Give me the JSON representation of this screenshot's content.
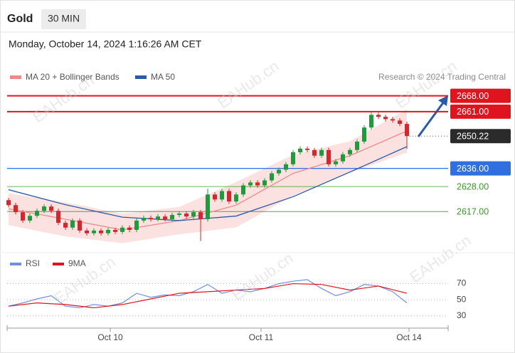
{
  "header": {
    "symbol": "Gold",
    "interval": "30 MIN",
    "datetime": "Monday, October 14, 2024 1:16:26 AM CET"
  },
  "watermark": "EAHub.cn",
  "chart_data": [
    {
      "type": "candlestick",
      "source": "Research © 2024 Trading Central",
      "up_color": "#1f9a3c",
      "down_color": "#d7262b",
      "x": [
        0,
        1,
        2,
        3,
        4,
        5,
        6,
        7,
        8,
        9,
        10,
        11,
        12,
        13,
        14,
        15,
        16,
        17,
        18,
        19,
        20,
        21,
        22,
        23,
        24,
        25,
        26,
        27,
        28,
        29,
        30,
        31,
        32,
        33,
        34,
        35,
        36,
        37,
        38,
        39,
        40,
        41,
        42,
        43,
        44,
        45,
        46,
        47,
        48,
        49,
        50,
        51,
        52,
        53,
        54,
        55,
        56
      ],
      "open": [
        2622.0,
        2619.8,
        2616.7,
        2613.0,
        2615.1,
        2617.3,
        2619.2,
        2617.3,
        2612.0,
        2609.9,
        2613.0,
        2608.6,
        2607.4,
        2608.6,
        2607.4,
        2608.9,
        2608.0,
        2609.9,
        2608.9,
        2613.0,
        2614.2,
        2613.6,
        2614.8,
        2613.6,
        2615.5,
        2616.1,
        2614.8,
        2616.7,
        2613.6,
        2624.5,
        2622.3,
        2626.0,
        2621.4,
        2624.5,
        2628.5,
        2629.8,
        2628.5,
        2630.7,
        2633.8,
        2635.4,
        2637.8,
        2643.1,
        2644.7,
        2644.1,
        2641.6,
        2644.1,
        2637.8,
        2639.1,
        2642.2,
        2644.1,
        2647.8,
        2654.0,
        2659.6,
        2658.7,
        2657.7,
        2657.1,
        2655.6
      ],
      "high": [
        2623.0,
        2620.8,
        2617.7,
        2616.1,
        2618.3,
        2620.2,
        2620.2,
        2618.3,
        2613.0,
        2614.0,
        2614.0,
        2609.6,
        2609.6,
        2609.6,
        2609.9,
        2609.9,
        2610.9,
        2610.9,
        2614.0,
        2615.2,
        2615.2,
        2615.8,
        2615.8,
        2616.5,
        2617.1,
        2617.1,
        2617.7,
        2617.7,
        2627.0,
        2625.5,
        2627.0,
        2627.0,
        2625.5,
        2629.5,
        2630.8,
        2630.8,
        2631.7,
        2634.8,
        2636.4,
        2638.8,
        2644.1,
        2645.7,
        2645.7,
        2645.1,
        2645.1,
        2645.1,
        2640.1,
        2643.2,
        2645.1,
        2648.8,
        2655.0,
        2660.6,
        2660.6,
        2659.7,
        2658.7,
        2658.1,
        2656.6
      ],
      "low": [
        2618.8,
        2615.7,
        2612.0,
        2612.0,
        2614.1,
        2616.3,
        2616.3,
        2611.0,
        2608.9,
        2608.9,
        2607.6,
        2606.4,
        2606.4,
        2606.4,
        2606.4,
        2607.0,
        2607.0,
        2607.9,
        2607.9,
        2612.0,
        2612.6,
        2612.6,
        2612.6,
        2612.6,
        2614.5,
        2613.8,
        2613.8,
        2604.0,
        2612.6,
        2621.3,
        2621.3,
        2620.4,
        2620.4,
        2623.5,
        2627.5,
        2627.5,
        2627.5,
        2629.7,
        2632.8,
        2634.4,
        2636.8,
        2642.1,
        2643.1,
        2640.6,
        2640.6,
        2636.8,
        2636.8,
        2638.1,
        2641.2,
        2643.1,
        2646.8,
        2653.0,
        2657.7,
        2656.7,
        2656.1,
        2654.6,
        2644.5
      ],
      "close": [
        2619.8,
        2616.7,
        2613.0,
        2615.1,
        2617.3,
        2619.2,
        2617.3,
        2612.0,
        2609.9,
        2613.0,
        2608.6,
        2607.4,
        2608.6,
        2607.4,
        2608.9,
        2608.0,
        2609.9,
        2608.9,
        2613.0,
        2614.2,
        2613.6,
        2614.8,
        2613.6,
        2615.5,
        2616.1,
        2614.8,
        2616.7,
        2613.6,
        2624.5,
        2622.3,
        2626.0,
        2621.4,
        2624.5,
        2628.5,
        2629.8,
        2628.5,
        2630.7,
        2633.8,
        2635.4,
        2637.8,
        2643.1,
        2644.7,
        2644.1,
        2641.6,
        2644.1,
        2637.8,
        2639.1,
        2642.2,
        2644.1,
        2647.8,
        2654.0,
        2659.6,
        2658.7,
        2657.7,
        2657.1,
        2655.6,
        2650.22
      ],
      "series": [
        {
          "name": "MA 20 + Bollinger Bands",
          "color": "#f08a8a",
          "band_color": "#fbd9d9",
          "x": [
            0,
            8,
            16,
            24,
            32,
            40,
            48,
            56
          ],
          "values": [
            2618.2,
            2613.6,
            2608.9,
            2613.0,
            2619.8,
            2633.8,
            2641.6,
            2652.5
          ],
          "upper": [
            2625,
            2621,
            2616,
            2619,
            2630,
            2642,
            2648,
            2662
          ],
          "lower": [
            2611,
            2606,
            2603,
            2607,
            2610,
            2624,
            2634,
            2643
          ]
        },
        {
          "name": "MA 50",
          "color": "#2b5ba8",
          "x": [
            0,
            8,
            16,
            24,
            32,
            40,
            48,
            56
          ],
          "values": [
            2626.6,
            2620.0,
            2614.5,
            2613.0,
            2615.0,
            2623.5,
            2634.4,
            2645.6
          ]
        }
      ],
      "levels": [
        {
          "value": 2668,
          "label": "2668.00",
          "color": "#e0141e",
          "boxed": true
        },
        {
          "value": 2661,
          "label": "2661.00",
          "color": "#e0141e",
          "boxed": true
        },
        {
          "value": 2636,
          "label": "2636.00",
          "color": "#2f6fe0",
          "boxed": true
        },
        {
          "value": 2628,
          "label": "2628.00",
          "color": "#3a9a2a",
          "boxed": false
        },
        {
          "value": 2617,
          "label": "2617.00",
          "color": "#3a9a2a",
          "boxed": false
        }
      ],
      "last_price": {
        "value": 2650.22,
        "label": "2650.22",
        "color": "#2b2b2b"
      },
      "xlim": [
        -0.2,
        61.8
      ],
      "ylim": [
        2602,
        2671
      ]
    },
    {
      "type": "line",
      "series": [
        {
          "name": "RSI",
          "color": "#6f8fe0",
          "x": [
            0,
            2,
            4,
            6,
            8,
            10,
            12,
            14,
            16,
            18,
            20,
            22,
            24,
            26,
            28,
            30,
            32,
            34,
            36,
            38,
            40,
            42,
            44,
            46,
            48,
            50,
            52,
            54,
            56
          ],
          "values": [
            42,
            46,
            51,
            55,
            42,
            40,
            44,
            42,
            46,
            58,
            53,
            56,
            55,
            60,
            69,
            58,
            62,
            60,
            64,
            70,
            73,
            75,
            64,
            55,
            60,
            69,
            67,
            60,
            46
          ]
        },
        {
          "name": "9MA",
          "color": "#e0141e",
          "x": [
            0,
            4,
            8,
            12,
            16,
            20,
            24,
            28,
            32,
            36,
            40,
            44,
            48,
            52,
            56
          ],
          "values": [
            42,
            46,
            44,
            40,
            44,
            51,
            58,
            60,
            62,
            64,
            70,
            69,
            62,
            67,
            58
          ]
        }
      ],
      "xlim": [
        -0.2,
        61.8
      ],
      "ylim": [
        20,
        82
      ],
      "yticks": [
        30,
        50,
        70
      ],
      "xticks": [
        {
          "value": 14.3,
          "label": "Oct 10"
        },
        {
          "value": 35.5,
          "label": "Oct 11"
        },
        {
          "value": 56.3,
          "label": "Oct 14"
        }
      ]
    }
  ]
}
